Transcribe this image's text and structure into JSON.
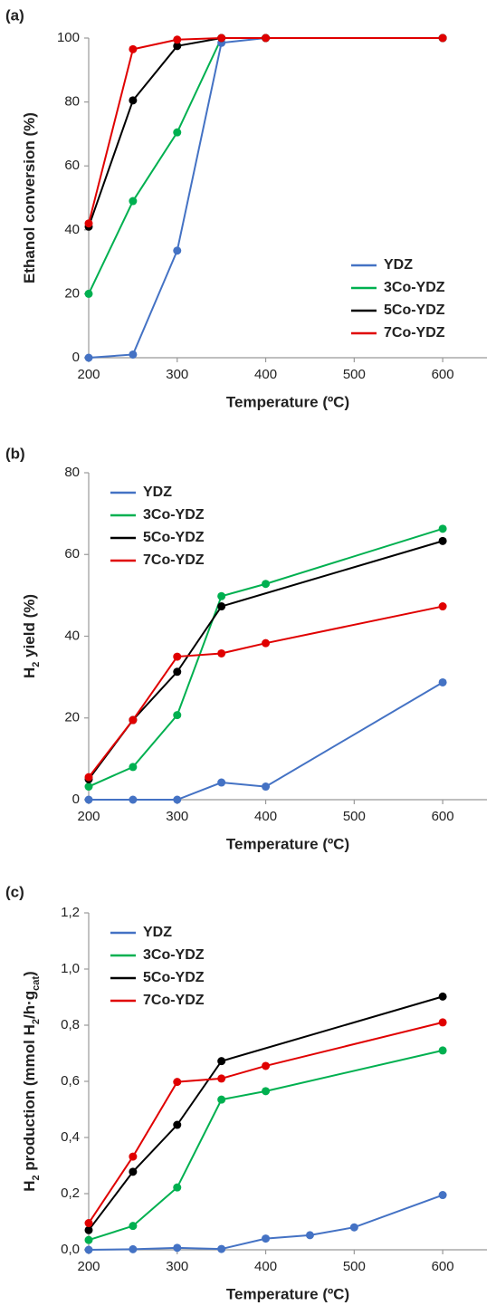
{
  "chart_data": [
    {
      "type": "line",
      "label": "(a)",
      "xlabel": "Temperature (ºC)",
      "ylabel": [
        "Ethanol conversion (%)"
      ],
      "xlim": [
        200,
        650
      ],
      "xticks": [
        200,
        300,
        400,
        500,
        600
      ],
      "ylim": [
        0,
        100
      ],
      "yticks": [
        0,
        20,
        40,
        60,
        80,
        100
      ],
      "legend": "lower right",
      "series": [
        {
          "name": "YDZ",
          "color": "#4472c4",
          "x": [
            200,
            250,
            300,
            350,
            400,
            600
          ],
          "values": [
            0,
            1,
            33.5,
            98.5,
            100,
            100
          ]
        },
        {
          "name": "3Co-YDZ",
          "color": "#00b050",
          "x": [
            200,
            250,
            300,
            350,
            400,
            600
          ],
          "values": [
            20,
            49,
            70.5,
            100,
            100,
            100
          ]
        },
        {
          "name": "5Co-YDZ",
          "color": "#000000",
          "x": [
            200,
            250,
            300,
            350,
            400,
            600
          ],
          "values": [
            41,
            80.5,
            97.5,
            100,
            100,
            100
          ]
        },
        {
          "name": "7Co-YDZ",
          "color": "#e00000",
          "x": [
            200,
            250,
            300,
            350,
            400,
            600
          ],
          "values": [
            42,
            96.5,
            99.5,
            100,
            100,
            100
          ]
        }
      ]
    },
    {
      "type": "line",
      "label": "(b)",
      "xlabel": "Temperature (ºC)",
      "ylabel": [
        "H",
        "2",
        " yield (%)"
      ],
      "xlim": [
        200,
        650
      ],
      "xticks": [
        200,
        300,
        400,
        500,
        600
      ],
      "ylim": [
        0,
        80
      ],
      "yticks": [
        0,
        20,
        40,
        60,
        80
      ],
      "legend": "upper left",
      "series": [
        {
          "name": "YDZ",
          "color": "#4472c4",
          "x": [
            200,
            250,
            300,
            350,
            400,
            600
          ],
          "values": [
            0,
            0,
            0,
            4.2,
            3.2,
            28.7
          ]
        },
        {
          "name": "3Co-YDZ",
          "color": "#00b050",
          "x": [
            200,
            250,
            300,
            350,
            400,
            600
          ],
          "values": [
            3.2,
            8,
            20.7,
            49.8,
            52.8,
            66.3
          ]
        },
        {
          "name": "5Co-YDZ",
          "color": "#000000",
          "x": [
            200,
            250,
            300,
            350,
            600
          ],
          "values": [
            5,
            19.5,
            31.3,
            47.3,
            63.3
          ]
        },
        {
          "name": "7Co-YDZ",
          "color": "#e00000",
          "x": [
            200,
            250,
            300,
            350,
            400,
            600
          ],
          "values": [
            5.5,
            19.5,
            35,
            35.8,
            38.3,
            47.3
          ]
        }
      ]
    },
    {
      "type": "line",
      "label": "(c)",
      "xlabel": "Temperature (ºC)",
      "ylabel": [
        "H",
        "2",
        " production (mmol H",
        "2",
        "/h·g",
        "cat",
        ")"
      ],
      "xlim": [
        200,
        650
      ],
      "xticks": [
        200,
        300,
        400,
        500,
        600
      ],
      "ylim": [
        0,
        1.2
      ],
      "yticks": [
        {
          "value": 0,
          "label": "0,0"
        },
        {
          "value": 0.2,
          "label": "0,2"
        },
        {
          "value": 0.4,
          "label": "0,4"
        },
        {
          "value": 0.6,
          "label": "0,6"
        },
        {
          "value": 0.8,
          "label": "0,8"
        },
        {
          "value": 1,
          "label": "1,0"
        },
        {
          "value": 1.2,
          "label": "1,2"
        }
      ],
      "legend": "upper left",
      "series": [
        {
          "name": "YDZ",
          "color": "#4472c4",
          "x": [
            200,
            250,
            300,
            350,
            400,
            450,
            500,
            600
          ],
          "values": [
            0,
            0.002,
            0.007,
            0.003,
            0.04,
            0.052,
            0.08,
            0.195
          ]
        },
        {
          "name": "3Co-YDZ",
          "color": "#00b050",
          "x": [
            200,
            250,
            300,
            350,
            400,
            600
          ],
          "values": [
            0.035,
            0.085,
            0.222,
            0.535,
            0.565,
            0.71
          ]
        },
        {
          "name": "5Co-YDZ",
          "color": "#000000",
          "x": [
            200,
            250,
            300,
            350,
            600
          ],
          "values": [
            0.07,
            0.278,
            0.445,
            0.672,
            0.902
          ]
        },
        {
          "name": "7Co-YDZ",
          "color": "#e00000",
          "x": [
            200,
            250,
            300,
            350,
            400,
            600
          ],
          "values": [
            0.095,
            0.332,
            0.598,
            0.61,
            0.655,
            0.81
          ]
        }
      ]
    }
  ]
}
